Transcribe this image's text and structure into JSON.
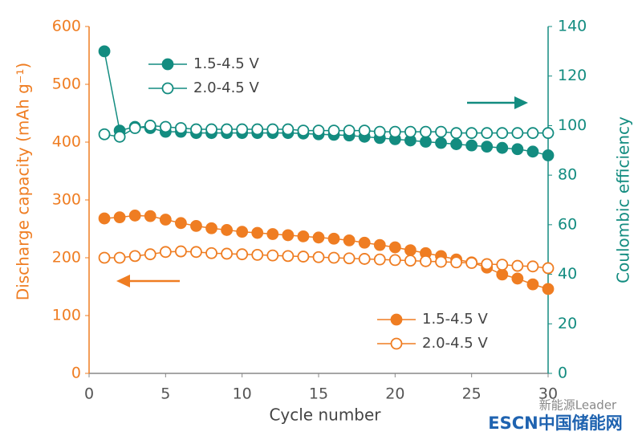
{
  "chart_data": {
    "type": "line",
    "xlabel": "Cycle number",
    "ylabel": "Discharge capacity (mAh g⁻¹)",
    "y2label": "Coulombic efficiency",
    "x": [
      1,
      2,
      3,
      4,
      5,
      6,
      7,
      8,
      9,
      10,
      11,
      12,
      13,
      14,
      15,
      16,
      17,
      18,
      19,
      20,
      21,
      22,
      23,
      24,
      25,
      26,
      27,
      28,
      29,
      30
    ],
    "xlim": [
      0,
      30
    ],
    "xticks": [
      0,
      5,
      10,
      15,
      20,
      25,
      30
    ],
    "ylim": [
      0,
      600
    ],
    "yticks": [
      0,
      100,
      200,
      300,
      400,
      500,
      600
    ],
    "y2lim": [
      0,
      140
    ],
    "y2ticks": [
      0,
      20,
      40,
      60,
      80,
      100,
      120,
      140
    ],
    "y_color": "#ef7d22",
    "y2_color": "#138c80",
    "series": [
      {
        "name": "1.5-4.5 V",
        "color": "#ef7d22",
        "marker": "filled",
        "axis": "y",
        "legend": "lower right",
        "values": [
          268,
          270,
          273,
          272,
          266,
          260,
          255,
          251,
          248,
          245,
          243,
          241,
          239,
          237,
          235,
          233,
          230,
          226,
          222,
          218,
          213,
          208,
          203,
          197,
          192,
          183,
          171,
          164,
          154,
          146
        ]
      },
      {
        "name": "2.0-4.5 V",
        "color": "#ef7d22",
        "marker": "open",
        "axis": "y",
        "legend": "lower right",
        "values": [
          200,
          200,
          203,
          206,
          210,
          211,
          210,
          208,
          207,
          206,
          205,
          204,
          203,
          202,
          201,
          200,
          199,
          198,
          197,
          196,
          195,
          194,
          193,
          192,
          191,
          189,
          188,
          186,
          185,
          182
        ]
      },
      {
        "name": "1.5-4.5 V",
        "color": "#138c80",
        "marker": "filled",
        "axis": "y2",
        "legend": "upper left",
        "values": [
          130,
          98,
          99.5,
          99,
          97.5,
          97.5,
          97,
          97,
          97,
          97,
          97,
          97,
          97,
          96.8,
          96.5,
          96.3,
          96,
          95.5,
          95,
          94.5,
          94,
          93.5,
          93,
          92.5,
          92,
          91.5,
          91,
          90.5,
          89.5,
          88
        ]
      },
      {
        "name": "2.0-4.5 V",
        "color": "#138c80",
        "marker": "open",
        "axis": "y2",
        "legend": "upper left",
        "values": [
          96.5,
          95.5,
          99,
          100,
          99.5,
          99,
          98.5,
          98.5,
          98.5,
          98.5,
          98.5,
          98.5,
          98.5,
          98,
          98,
          98,
          98,
          98,
          97.5,
          97.5,
          97.5,
          97.5,
          97.5,
          97,
          97,
          97,
          97,
          97,
          97,
          97
        ]
      }
    ]
  },
  "watermark": {
    "top": "新能源Leader",
    "bottom": "ESCN中国储能网"
  }
}
